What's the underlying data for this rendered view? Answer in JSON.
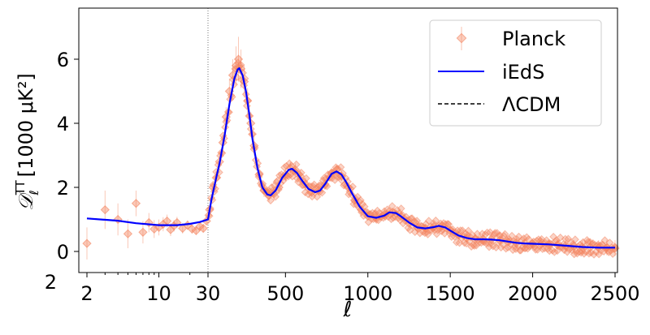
{
  "chart_data": {
    "type": "scatter",
    "title": "",
    "xlabel": "ℓ",
    "ylabel_main": "𝒟",
    "ylabel_sub": "ℓ",
    "ylabel_sup": "TT",
    "ylabel_units": "[1000 μK²]",
    "xscale": "log for ℓ<30, linear for ℓ≥30",
    "xlim": [
      1.8,
      2510
    ],
    "ylim": [
      -0.65,
      7.6
    ],
    "x_ticks": [
      {
        "v": 2,
        "label": "2"
      },
      {
        "v": 10,
        "label": "10"
      },
      {
        "v": 30,
        "label": "30"
      },
      {
        "v": 500,
        "label": "500"
      },
      {
        "v": 1000,
        "label": "1000"
      },
      {
        "v": 1500,
        "label": "1500"
      },
      {
        "v": 2000,
        "label": "2000"
      },
      {
        "v": 2500,
        "label": "2500"
      }
    ],
    "y_ticks": [
      {
        "v": 0,
        "label": "0"
      },
      {
        "v": 2,
        "label": "2"
      },
      {
        "v": 4,
        "label": "4"
      },
      {
        "v": 6,
        "label": "6"
      }
    ],
    "extra_label": "2",
    "split_line_ell": 30,
    "legend_position": "top-right",
    "legend": [
      {
        "label": "Planck",
        "kind": "errorbar"
      },
      {
        "label": "iEdS",
        "kind": "line"
      },
      {
        "label": "ΛCDM",
        "kind": "dashed"
      }
    ],
    "colors": {
      "planck": "#f4845f",
      "iEdS": "#0000ff",
      "LCDM": "#000000"
    },
    "series": [
      {
        "name": "iEdS",
        "ell": [
          2,
          4,
          6,
          10,
          15,
          20,
          25,
          30,
          50,
          80,
          100,
          130,
          160,
          190,
          210,
          220,
          240,
          260,
          280,
          300,
          330,
          360,
          390,
          410,
          440,
          480,
          520,
          540,
          570,
          600,
          640,
          680,
          710,
          740,
          780,
          810,
          840,
          870,
          900,
          950,
          1000,
          1050,
          1100,
          1130,
          1170,
          1200,
          1250,
          1300,
          1350,
          1400,
          1430,
          1470,
          1500,
          1550,
          1600,
          1650,
          1700,
          1750,
          1800,
          1850,
          1900,
          1950,
          2000,
          2100,
          2200,
          2300,
          2400,
          2500
        ],
        "D": [
          1.03,
          0.96,
          0.88,
          0.82,
          0.82,
          0.86,
          0.92,
          1.0,
          1.6,
          2.3,
          2.75,
          3.6,
          4.6,
          5.4,
          5.68,
          5.72,
          5.5,
          5.0,
          4.3,
          3.5,
          2.6,
          2.0,
          1.78,
          1.75,
          1.9,
          2.3,
          2.55,
          2.58,
          2.45,
          2.22,
          1.95,
          1.85,
          1.9,
          2.1,
          2.42,
          2.5,
          2.4,
          2.15,
          1.85,
          1.4,
          1.1,
          1.05,
          1.12,
          1.22,
          1.2,
          1.1,
          0.9,
          0.75,
          0.72,
          0.76,
          0.8,
          0.75,
          0.65,
          0.5,
          0.42,
          0.38,
          0.38,
          0.37,
          0.35,
          0.31,
          0.27,
          0.25,
          0.24,
          0.22,
          0.18,
          0.14,
          0.12,
          0.12
        ]
      },
      {
        "name": "Planck",
        "ell": [
          2,
          3,
          4,
          5,
          6,
          7,
          8,
          9,
          10,
          11,
          12,
          13,
          14,
          15,
          17,
          19,
          21,
          23,
          25,
          27,
          29,
          40,
          60,
          80,
          100,
          120,
          140,
          160,
          180,
          200,
          215,
          230,
          250,
          270,
          290,
          310,
          340,
          370,
          400,
          430,
          460,
          500,
          530,
          560,
          590,
          620,
          660,
          700,
          740,
          780,
          810,
          840,
          880,
          920,
          960,
          1000,
          1050,
          1100,
          1150,
          1200,
          1250,
          1300,
          1350,
          1400,
          1450,
          1500,
          1550,
          1600,
          1650,
          1700,
          1750,
          1800,
          1850,
          1900,
          1950,
          2000,
          2050,
          2100,
          2150,
          2200,
          2250,
          2300,
          2350,
          2400,
          2450,
          2500
        ],
        "D": [
          0.25,
          1.3,
          1.0,
          0.55,
          1.5,
          0.6,
          0.9,
          0.7,
          0.75,
          0.85,
          0.95,
          0.68,
          0.8,
          0.9,
          0.72,
          0.82,
          0.7,
          0.65,
          0.78,
          0.72,
          0.95,
          1.3,
          2.0,
          2.3,
          2.8,
          3.4,
          4.2,
          5.0,
          5.5,
          5.8,
          6.0,
          5.7,
          5.3,
          4.7,
          4.0,
          3.3,
          2.4,
          1.9,
          1.75,
          1.8,
          2.0,
          2.4,
          2.6,
          2.55,
          2.35,
          2.1,
          1.85,
          1.9,
          2.1,
          2.45,
          2.55,
          2.35,
          2.0,
          1.6,
          1.3,
          1.1,
          1.05,
          1.15,
          1.22,
          1.1,
          0.88,
          0.75,
          0.72,
          0.78,
          0.8,
          0.65,
          0.5,
          0.42,
          0.38,
          0.39,
          0.37,
          0.35,
          0.3,
          0.27,
          0.25,
          0.24,
          0.23,
          0.21,
          0.2,
          0.18,
          0.16,
          0.14,
          0.13,
          0.12,
          0.12,
          0.1
        ],
        "err": [
          0.5,
          0.6,
          0.5,
          0.45,
          0.4,
          0.35,
          0.3,
          0.28,
          0.25,
          0.22,
          0.2,
          0.2,
          0.18,
          0.18,
          0.16,
          0.15,
          0.14,
          0.13,
          0.12,
          0.12,
          0.11,
          0.15,
          0.15,
          0.15,
          0.2,
          0.25,
          0.3,
          0.4,
          0.5,
          0.6,
          0.7,
          0.6,
          0.5,
          0.4,
          0.35,
          0.3,
          0.25,
          0.2,
          0.2,
          0.2,
          0.2,
          0.2,
          0.2,
          0.2,
          0.2,
          0.2,
          0.15,
          0.15,
          0.15,
          0.15,
          0.15,
          0.15,
          0.15,
          0.12,
          0.12,
          0.12,
          0.12,
          0.12,
          0.12,
          0.12,
          0.12,
          0.12,
          0.12,
          0.12,
          0.12,
          0.12,
          0.12,
          0.12,
          0.12,
          0.12,
          0.12,
          0.12,
          0.12,
          0.14,
          0.14,
          0.15,
          0.16,
          0.17,
          0.18,
          0.19,
          0.2,
          0.21,
          0.22,
          0.23,
          0.24,
          0.25
        ]
      }
    ]
  }
}
